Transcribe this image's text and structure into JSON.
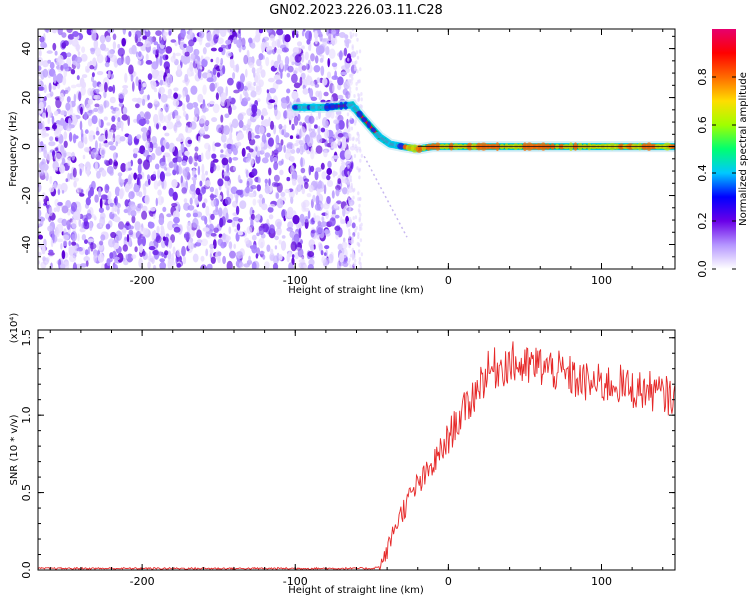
{
  "title": "GN02.2023.226.03.11.C28",
  "chart_data": [
    {
      "type": "heatmap",
      "xlabel": "Height of straight line (km)",
      "ylabel": "Frequency (Hz)",
      "xlim": [
        -268,
        148
      ],
      "ylim": [
        -50,
        48
      ],
      "x_ticks": [
        -200,
        -100,
        0,
        100
      ],
      "y_ticks": [
        -40,
        -20,
        0,
        20,
        40
      ],
      "noise_region_x": [
        -268,
        -63
      ],
      "signal_track": [
        {
          "x": -100,
          "y": 16
        },
        {
          "x": -80,
          "y": 16
        },
        {
          "x": -63,
          "y": 17
        },
        {
          "x": -55,
          "y": 11
        },
        {
          "x": -45,
          "y": 4
        },
        {
          "x": -38,
          "y": 1
        },
        {
          "x": -30,
          "y": 0
        },
        {
          "x": -20,
          "y": -1
        },
        {
          "x": -10,
          "y": 0
        },
        {
          "x": 0,
          "y": 0
        },
        {
          "x": 50,
          "y": 0
        },
        {
          "x": 100,
          "y": 0
        },
        {
          "x": 148,
          "y": 0
        }
      ],
      "colorbar": {
        "label": "Normalized spectral amplitude",
        "range": [
          0,
          1
        ],
        "ticks": [
          "0.0",
          "0.2",
          "0.4",
          "0.6",
          "0.8"
        ],
        "colors": [
          "#ffffff",
          "#b596ff",
          "#6a00e8",
          "#0000ff",
          "#00c8ff",
          "#00ff70",
          "#a0ff00",
          "#ffdd00",
          "#ff6a00",
          "#ff0000",
          "#e6006e"
        ]
      }
    },
    {
      "type": "line",
      "xlabel": "Height of straight line (km)",
      "ylabel": "SNR (10 * v/v)",
      "multiplier": "(x10⁴)",
      "xlim": [
        -268,
        148
      ],
      "ylim": [
        0,
        1.55
      ],
      "x_ticks": [
        -200,
        -100,
        0,
        100
      ],
      "y_ticks": [
        "0.0",
        "0.5",
        "1.0",
        "1.5"
      ],
      "series": [
        {
          "color": "#e62828",
          "x": [
            -268,
            -200,
            -100,
            -50,
            -45,
            -42,
            -38,
            -35,
            -30,
            -25,
            -20,
            -15,
            -10,
            -5,
            0,
            5,
            10,
            15,
            20,
            25,
            30,
            35,
            40,
            45,
            50,
            55,
            60,
            65,
            70,
            75,
            80,
            85,
            90,
            95,
            100,
            105,
            110,
            115,
            120,
            125,
            130,
            135,
            140,
            148
          ],
          "values": [
            0.01,
            0.01,
            0.01,
            0.01,
            0.02,
            0.07,
            0.18,
            0.28,
            0.38,
            0.47,
            0.55,
            0.6,
            0.68,
            0.76,
            0.85,
            0.95,
            1.02,
            1.1,
            1.2,
            1.27,
            1.3,
            1.32,
            1.34,
            1.33,
            1.3,
            1.32,
            1.32,
            1.3,
            1.29,
            1.26,
            1.25,
            1.22,
            1.21,
            1.2,
            1.2,
            1.2,
            1.21,
            1.18,
            1.17,
            1.16,
            1.16,
            1.15,
            1.13,
            1.12
          ]
        }
      ]
    }
  ]
}
